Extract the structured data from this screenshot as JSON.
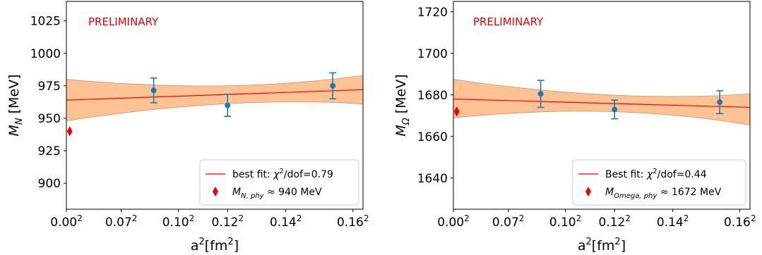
{
  "chart_data": [
    {
      "type": "scatter",
      "ylabel_main": "M",
      "ylabel_sub": "N",
      "ylabel_unit": " [MeV]",
      "xlabel_main": "a",
      "xlabel_sup": "2",
      "xlabel_rest": "[fm",
      "xlabel_sup2": "2",
      "xlabel_close": "]",
      "xlim": [
        0,
        0.0265
      ],
      "ylim": [
        880,
        1040
      ],
      "xticks": [
        {
          "value": 0.0,
          "base": "0.00",
          "sup": "2"
        },
        {
          "value": 0.0049,
          "base": "0.07",
          "sup": "2"
        },
        {
          "value": 0.01,
          "base": "0.10",
          "sup": "2"
        },
        {
          "value": 0.0144,
          "base": "0.12",
          "sup": "2"
        },
        {
          "value": 0.0196,
          "base": "0.14",
          "sup": "2"
        },
        {
          "value": 0.0256,
          "base": "0.16",
          "sup": "2"
        }
      ],
      "yticks": [
        900,
        925,
        950,
        975,
        1000,
        1025
      ],
      "annotation": "PRELIMINARY",
      "points": [
        {
          "x": 0.0078,
          "y": 971.5,
          "err": 9.5
        },
        {
          "x": 0.0144,
          "y": 960.0,
          "err": 8.5
        },
        {
          "x": 0.0238,
          "y": 975.0,
          "err": 10.0
        }
      ],
      "fit": {
        "x": [
          0,
          0.0265
        ],
        "y": [
          964.0,
          972.0
        ],
        "band_upper": [
          980.0,
          983.0
        ],
        "band_mid": [
          0.0144,
          968.0,
          975.0,
          961.0
        ],
        "band_lower": [
          948.0,
          961.0
        ]
      },
      "phys": {
        "x": 0.0003,
        "y": 940.0
      },
      "legend": {
        "placement": "lower-right",
        "fit_text": "best fit: ",
        "fit_chi": "χ",
        "fit_sup": "2",
        "fit_rest": "/dof=0.79",
        "phys_main": "M",
        "phys_sub": "N, phy",
        "phys_rest": " ≈ 940 MeV"
      }
    },
    {
      "type": "scatter",
      "ylabel_main": "M",
      "ylabel_sub": "Ω",
      "ylabel_unit": " [MeV]",
      "xlabel_main": "a",
      "xlabel_sup": "2",
      "xlabel_rest": "[fm",
      "xlabel_sup2": "2",
      "xlabel_close": "]",
      "xlim": [
        0,
        0.0265
      ],
      "ylim": [
        1625,
        1725
      ],
      "xticks": [
        {
          "value": 0.0,
          "base": "0.00",
          "sup": "2"
        },
        {
          "value": 0.0049,
          "base": "0.07",
          "sup": "2"
        },
        {
          "value": 0.01,
          "base": "0.10",
          "sup": "2"
        },
        {
          "value": 0.0144,
          "base": "0.12",
          "sup": "2"
        },
        {
          "value": 0.0196,
          "base": "0.14",
          "sup": "2"
        },
        {
          "value": 0.0256,
          "base": "0.16",
          "sup": "2"
        }
      ],
      "yticks": [
        1640,
        1660,
        1680,
        1700,
        1720
      ],
      "annotation": "PRELIMINARY",
      "points": [
        {
          "x": 0.0078,
          "y": 1680.5,
          "err": 6.5
        },
        {
          "x": 0.0144,
          "y": 1673.0,
          "err": 4.5
        },
        {
          "x": 0.0238,
          "y": 1676.5,
          "err": 5.5
        }
      ],
      "fit": {
        "x": [
          0,
          0.0265
        ],
        "y": [
          1678.0,
          1674.0
        ],
        "band_upper": [
          1687.5,
          1680.5
        ],
        "band_mid": [
          0.0144,
          1676.0,
          1680.0,
          1672.0
        ],
        "band_lower": [
          1669.0,
          1665.5
        ]
      },
      "phys": {
        "x": 0.0003,
        "y": 1672.0
      },
      "legend": {
        "placement": "lower-right",
        "fit_text": "Best fit: ",
        "fit_chi": "χ",
        "fit_sup": "2",
        "fit_rest": "/dof=0.44",
        "phys_main": "M",
        "phys_sub": "Omega, phy",
        "phys_rest": " ≈ 1672 MeV"
      }
    }
  ],
  "colors": {
    "point": "#1f77b4",
    "fit_line": "#ff0000",
    "band_fill": "#ffbb88",
    "band_edge": "#d89060",
    "phys_marker": "#ee0000",
    "annotation": "#ee0000",
    "axes": "#000000"
  }
}
